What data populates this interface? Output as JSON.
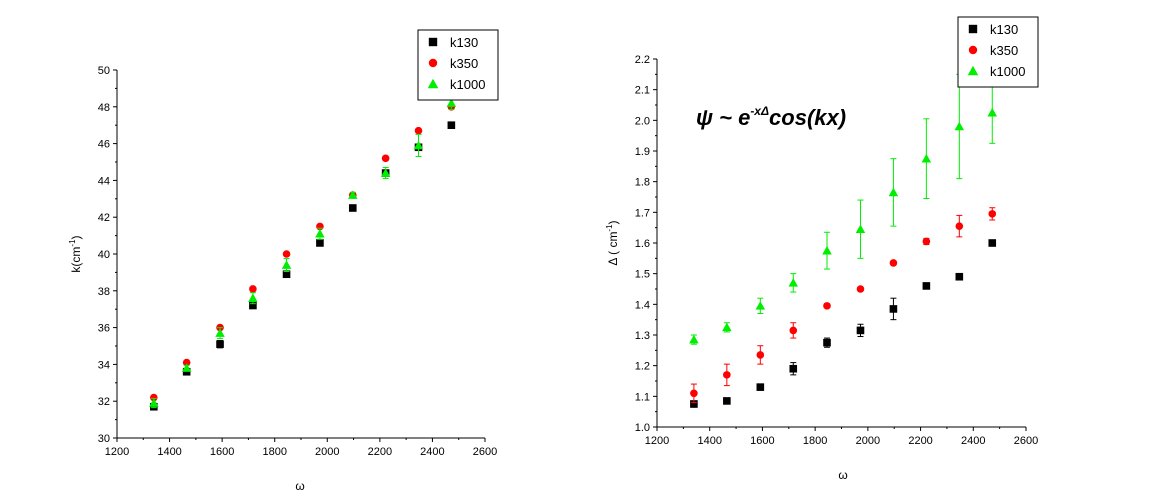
{
  "chart_data": [
    {
      "type": "scatter",
      "title": "",
      "xlabel": "ω",
      "ylabel": "k(cm",
      "ylabel_sup": "-1",
      "ylabel_close": ")",
      "xlim": [
        1200,
        2600
      ],
      "ylim": [
        30,
        50
      ],
      "xticks": [
        1200,
        1400,
        1600,
        1800,
        2000,
        2200,
        2400,
        2600
      ],
      "yticks": [
        30,
        32,
        34,
        36,
        38,
        40,
        42,
        44,
        46,
        48,
        50
      ],
      "legend_position": "top-right",
      "series": [
        {
          "name": "k130",
          "marker": "square",
          "color": "#000000",
          "x": [
            1340,
            1465,
            1592,
            1717,
            1845,
            1972,
            2097,
            2222,
            2347,
            2472
          ],
          "y": [
            31.7,
            33.6,
            35.1,
            37.2,
            38.9,
            40.6,
            42.5,
            44.4,
            45.8,
            47.0
          ],
          "err": [
            0,
            0,
            0.2,
            0,
            0,
            0,
            0,
            0,
            0,
            0
          ]
        },
        {
          "name": "k350",
          "marker": "circle",
          "color": "#ff0000",
          "x": [
            1340,
            1465,
            1592,
            1717,
            1845,
            1972,
            2097,
            2222,
            2347,
            2472
          ],
          "y": [
            32.2,
            34.1,
            36.0,
            38.1,
            40.0,
            41.5,
            43.2,
            45.2,
            46.7,
            48.0
          ],
          "err": [
            0,
            0,
            0,
            0,
            0,
            0,
            0,
            0,
            0,
            0
          ]
        },
        {
          "name": "k1000",
          "marker": "triangle",
          "color": "#00ee00",
          "x": [
            1340,
            1465,
            1592,
            1717,
            1845,
            1972,
            2097,
            2222,
            2347,
            2472
          ],
          "y": [
            31.9,
            33.8,
            35.7,
            37.6,
            39.4,
            41.1,
            43.2,
            44.4,
            45.9,
            48.2
          ],
          "err": [
            0.25,
            0.15,
            0.3,
            0.3,
            0.35,
            0.3,
            0.15,
            0.3,
            0.6,
            0.35
          ]
        }
      ]
    },
    {
      "type": "scatter",
      "title": "",
      "xlabel": "ω",
      "ylabel": "Δ ( cm",
      "ylabel_sup": "-1",
      "ylabel_close": ")",
      "annotation": {
        "base": "ψ ~ e",
        "sup": "-xΔ",
        "rest": "cos(kx)"
      },
      "xlim": [
        1200,
        2600
      ],
      "ylim": [
        1.0,
        2.2
      ],
      "xticks": [
        1200,
        1400,
        1600,
        1800,
        2000,
        2200,
        2400,
        2600
      ],
      "yticks": [
        1.0,
        1.1,
        1.2,
        1.3,
        1.4,
        1.5,
        1.6,
        1.7,
        1.8,
        1.9,
        2.0,
        2.1,
        2.2
      ],
      "legend_position": "top-right",
      "series": [
        {
          "name": "k130",
          "marker": "square",
          "color": "#000000",
          "x": [
            1340,
            1465,
            1592,
            1717,
            1845,
            1972,
            2097,
            2222,
            2347,
            2472
          ],
          "y": [
            1.075,
            1.085,
            1.13,
            1.19,
            1.275,
            1.315,
            1.385,
            1.46,
            1.49,
            1.6
          ],
          "err": [
            0.01,
            0,
            0,
            0.02,
            0.015,
            0.02,
            0.035,
            0,
            0.005,
            0
          ]
        },
        {
          "name": "k350",
          "marker": "circle",
          "color": "#ff0000",
          "x": [
            1340,
            1465,
            1592,
            1717,
            1845,
            1972,
            2097,
            2222,
            2347,
            2472
          ],
          "y": [
            1.11,
            1.17,
            1.235,
            1.315,
            1.395,
            1.45,
            1.535,
            1.605,
            1.655,
            1.695
          ],
          "err": [
            0.03,
            0.035,
            0.03,
            0.025,
            0,
            0,
            0,
            0.01,
            0.035,
            0.02
          ]
        },
        {
          "name": "k1000",
          "marker": "triangle",
          "color": "#00ee00",
          "x": [
            1340,
            1465,
            1592,
            1717,
            1845,
            1972,
            2097,
            2222,
            2347,
            2472
          ],
          "y": [
            1.285,
            1.325,
            1.395,
            1.47,
            1.575,
            1.645,
            1.765,
            1.875,
            1.98,
            2.025
          ],
          "err": [
            0.015,
            0.015,
            0.025,
            0.03,
            0.06,
            0.095,
            0.11,
            0.13,
            0.17,
            0.1
          ]
        }
      ]
    }
  ]
}
